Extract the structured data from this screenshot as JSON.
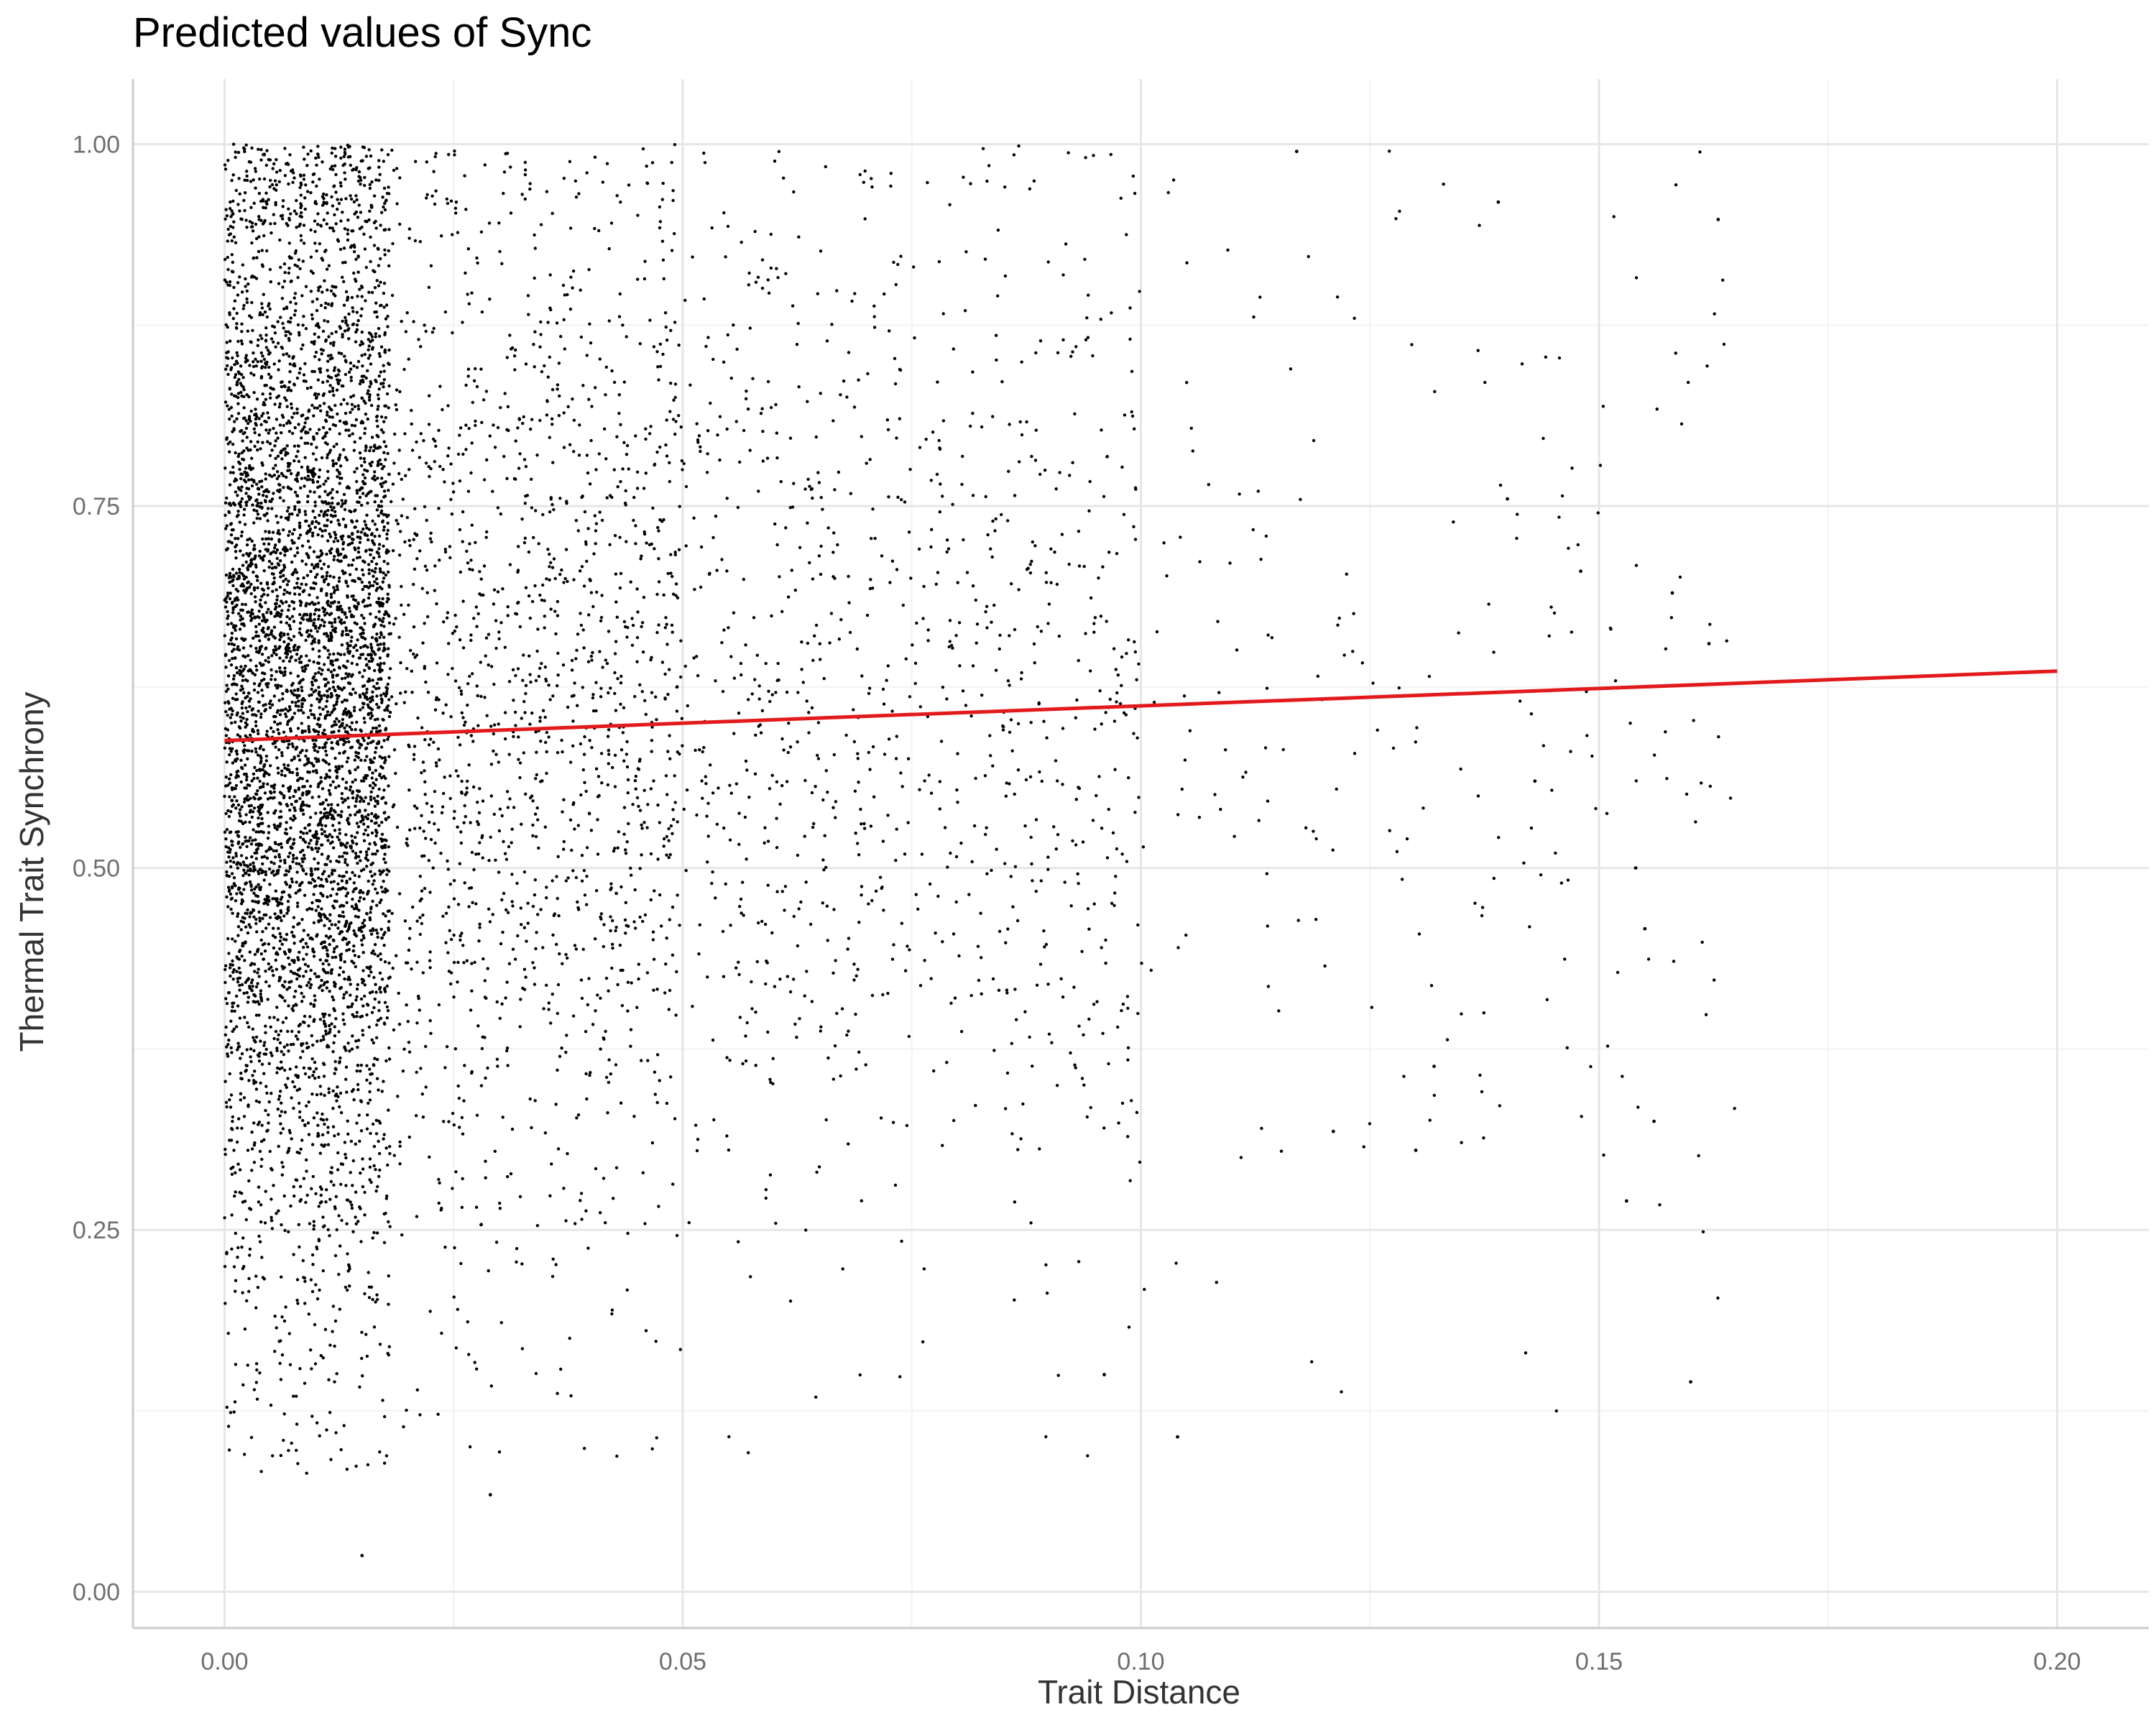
{
  "chart_data": {
    "type": "scatter",
    "title": "Predicted values of Sync",
    "xlabel": "Trait Distance",
    "ylabel": "Thermal Trait Synchrony",
    "xlim": [
      -0.01,
      0.21
    ],
    "ylim": [
      -0.025,
      1.045
    ],
    "x_ticks": [
      0.0,
      0.05,
      0.1,
      0.15,
      0.2
    ],
    "x_tick_labels": [
      "0.00",
      "0.05",
      "0.10",
      "0.15",
      "0.20"
    ],
    "y_ticks": [
      0.0,
      0.25,
      0.5,
      0.75,
      1.0
    ],
    "y_tick_labels": [
      "0.00",
      "0.25",
      "0.50",
      "0.75",
      "1.00"
    ],
    "grid": true,
    "points": {
      "approx_count": 8000,
      "color": "#000000",
      "note": "Dense point cloud concentrated at low trait distance (0–0.05), y spread roughly 0.1–1.0"
    },
    "highlighted_points": [
      {
        "x": 0.163,
        "y": 0.948
      },
      {
        "x": 0.16,
        "y": 0.145
      },
      {
        "x": 0.148,
        "y": 0.705
      },
      {
        "x": 0.156,
        "y": 0.325
      },
      {
        "x": 0.153,
        "y": 0.27
      },
      {
        "x": 0.154,
        "y": 0.5
      },
      {
        "x": 0.155,
        "y": 0.458
      },
      {
        "x": 0.139,
        "y": 0.96
      },
      {
        "x": 0.14,
        "y": 0.755
      },
      {
        "x": 0.143,
        "y": 0.56
      },
      {
        "x": 0.104,
        "y": 0.107
      },
      {
        "x": 0.096,
        "y": 0.15
      },
      {
        "x": 0.015,
        "y": 0.025
      },
      {
        "x": 0.029,
        "y": 0.067
      },
      {
        "x": 0.162,
        "y": 0.655
      },
      {
        "x": 0.158,
        "y": 0.69
      },
      {
        "x": 0.132,
        "y": 0.363
      },
      {
        "x": 0.13,
        "y": 0.305
      },
      {
        "x": 0.121,
        "y": 0.318
      },
      {
        "x": 0.117,
        "y": 0.995
      }
    ],
    "series": [
      {
        "type": "line",
        "color": "#e31a1c",
        "x": [
          0.0,
          0.2
        ],
        "y": [
          0.588,
          0.636
        ]
      }
    ]
  }
}
